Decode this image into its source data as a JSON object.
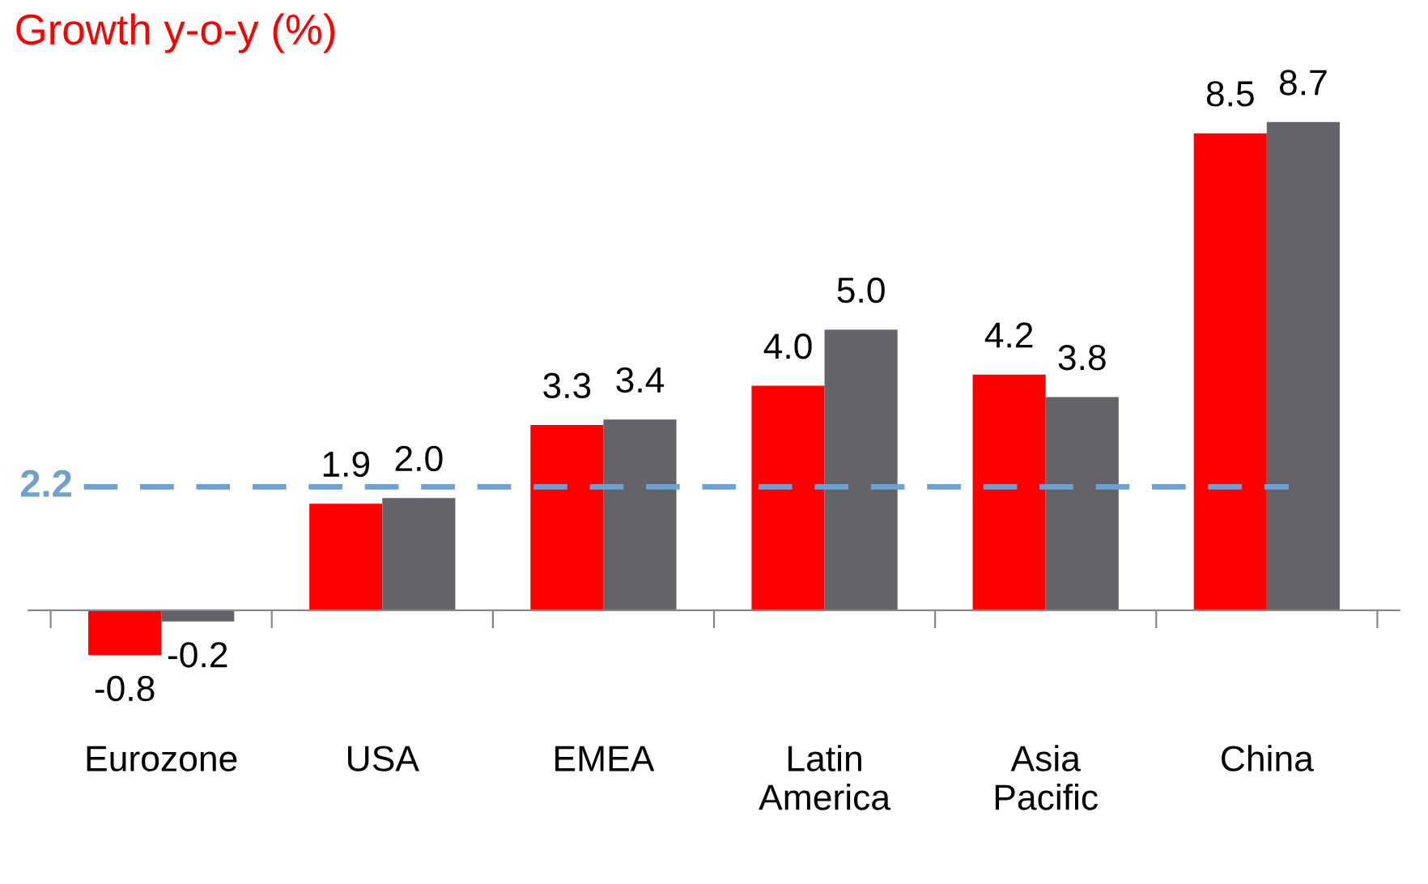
{
  "chart_data": {
    "type": "bar",
    "title": "Growth y-o-y (%)",
    "categories": [
      "Eurozone",
      "USA",
      "EMEA",
      "Latin America",
      "Asia Pacific",
      "China"
    ],
    "series": [
      {
        "color": "#ff0000",
        "values": [
          -0.8,
          1.9,
          3.3,
          4.0,
          4.2,
          8.5
        ],
        "value_labels": [
          "-0.8",
          "1.9",
          "3.3",
          "4.0",
          "4.2",
          "8.5"
        ]
      },
      {
        "color": "#636369",
        "values": [
          -0.2,
          2.0,
          3.4,
          5.0,
          3.8,
          8.7
        ],
        "value_labels": [
          "-0.2",
          "2.0",
          "3.4",
          "5.0",
          "3.8",
          "8.7"
        ]
      }
    ],
    "grid": false,
    "legend": false,
    "ref_lines": [
      {
        "axis": "y",
        "value": 2.2,
        "label": "2.2",
        "color": "#6fa0d2",
        "line_style": "dashed"
      }
    ]
  }
}
